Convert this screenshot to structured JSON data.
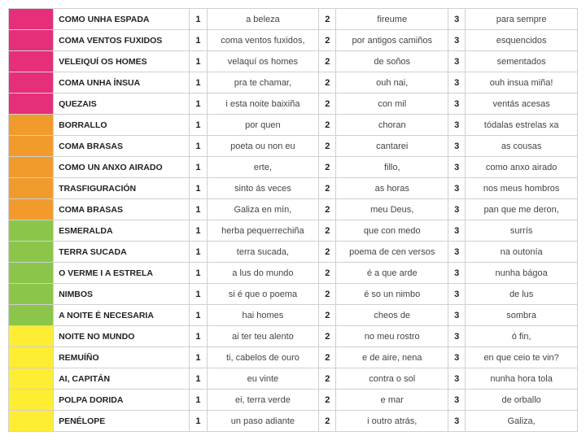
{
  "colors": {
    "pink": "#e62f78",
    "orange": "#f29b2d",
    "green": "#8bc64a",
    "yellow": "#ffed33",
    "border": "#d0d0d0",
    "text": "#333333",
    "bg": "#ffffff"
  },
  "num_labels": {
    "c1": "1",
    "c2": "2",
    "c3": "3"
  },
  "rows": [
    {
      "color": "#e62f78",
      "title": "COMO UNHA ESPADA",
      "p1": "a beleza",
      "p2": "fireume",
      "p3": "para sempre"
    },
    {
      "color": "#e62f78",
      "title": "COMA VENTOS FUXIDOS",
      "p1": "coma ventos fuxidos,",
      "p2": "por antigos camiños",
      "p3": "esquencidos"
    },
    {
      "color": "#e62f78",
      "title": "VELEIQUÍ OS HOMES",
      "p1": "velaquí os homes",
      "p2": "de soños",
      "p3": "sementados"
    },
    {
      "color": "#e62f78",
      "title": "COMA UNHA ÍNSUA",
      "p1": "pra te chamar,",
      "p2": "ouh nai,",
      "p3": "ouh insua miña!"
    },
    {
      "color": "#e62f78",
      "title": "QUEZAIS",
      "p1": "i esta noite baixiña",
      "p2": "con mil",
      "p3": "ventás acesas"
    },
    {
      "color": "#f29b2d",
      "title": "BORRALLO",
      "p1": "por quen",
      "p2": "choran",
      "p3": "tódalas estrelas xa"
    },
    {
      "color": "#f29b2d",
      "title": "COMA BRASAS",
      "p1": "poeta ou non eu",
      "p2": "cantarei",
      "p3": "as cousas"
    },
    {
      "color": "#f29b2d",
      "title": "COMO UN ANXO AIRADO",
      "p1": "erte,",
      "p2": "fillo,",
      "p3": "como anxo airado"
    },
    {
      "color": "#f29b2d",
      "title": "TRASFIGURACIÓN",
      "p1": "sinto ás veces",
      "p2": "as horas",
      "p3": "nos meus hombros"
    },
    {
      "color": "#f29b2d",
      "title": "COMA BRASAS",
      "p1": "Galiza en mín,",
      "p2": "meu Deus,",
      "p3": "pan que me deron,"
    },
    {
      "color": "#8bc64a",
      "title": "ESMERALDA",
      "p1": "herba pequerrechiña",
      "p2": "que con medo",
      "p3": "surrís"
    },
    {
      "color": "#8bc64a",
      "title": "TERRA SUCADA",
      "p1": "terra sucada,",
      "p2": "poema de cen versos",
      "p3": "na outonía"
    },
    {
      "color": "#8bc64a",
      "title": "O VERME I A ESTRELA",
      "p1": "a lus do mundo",
      "p2": "é a que arde",
      "p3": "nunha bágoa"
    },
    {
      "color": "#8bc64a",
      "title": "NIMBOS",
      "p1": "si é que o poema",
      "p2": "é so un nimbo",
      "p3": "de lus"
    },
    {
      "color": "#8bc64a",
      "title": "A NOITE É NECESARIA",
      "p1": "hai homes",
      "p2": "cheos de",
      "p3": "sombra"
    },
    {
      "color": "#ffed33",
      "title": "NOITE NO MUNDO",
      "p1": "ai ter teu alento",
      "p2": "no meu rostro",
      "p3": "ó fin,"
    },
    {
      "color": "#ffed33",
      "title": "REMUÍÑO",
      "p1": "ti, cabelos de ouro",
      "p2": "e de aire, nena",
      "p3": "en que ceio te vin?"
    },
    {
      "color": "#ffed33",
      "title": "AI, CAPITÁN",
      "p1": "eu vinte",
      "p2": "contra o sol",
      "p3": "nunha hora tola"
    },
    {
      "color": "#ffed33",
      "title": "POLPA DORIDA",
      "p1": "ei, terra verde",
      "p2": "e mar",
      "p3": "de orballo"
    },
    {
      "color": "#ffed33",
      "title": "PENÉLOPE",
      "p1": "un paso adiante",
      "p2": "i outro atrás,",
      "p3": "Galiza,"
    }
  ]
}
